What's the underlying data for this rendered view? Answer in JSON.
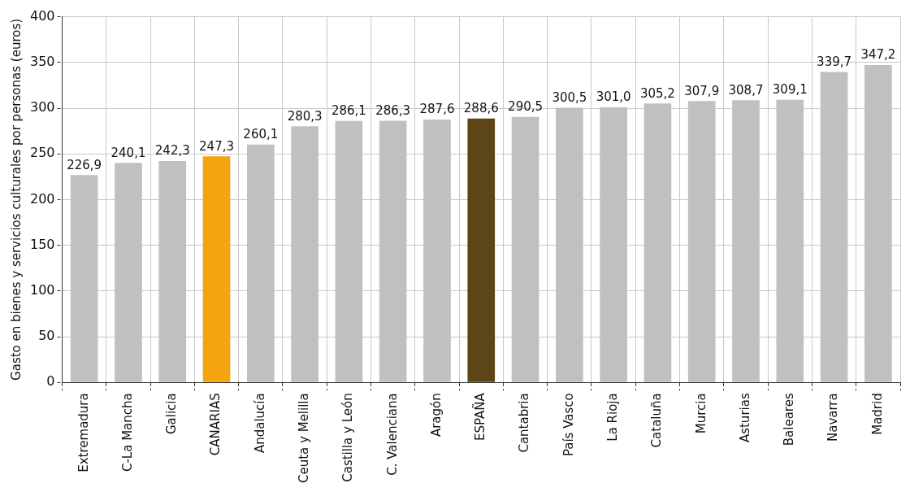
{
  "chart_data": {
    "type": "bar",
    "ylabel": "Gasto en bienes y servicios culturales por personas (euros)",
    "categories": [
      "Extremadura",
      "C-La Mancha",
      "Galicia",
      "CANARIAS",
      "Andalucía",
      "Ceuta y Melilla",
      "Castilla y León",
      "C. Valenciana",
      "Aragón",
      "ESPAÑA",
      "Cantabria",
      "País Vasco",
      "La Rioja",
      "Cataluña",
      "Murcia",
      "Asturias",
      "Baleares",
      "Navarra",
      "Madrid"
    ],
    "values": [
      226.9,
      240.1,
      242.3,
      247.3,
      260.1,
      280.3,
      286.1,
      286.3,
      287.6,
      288.6,
      290.5,
      300.5,
      301.0,
      305.2,
      307.9,
      308.7,
      309.1,
      339.7,
      347.2
    ],
    "value_labels": [
      "226,9",
      "240,1",
      "242,3",
      "247,3",
      "260,1",
      "280,3",
      "286,1",
      "286,3",
      "287,6",
      "288,6",
      "290,5",
      "300,5",
      "301,0",
      "305,2",
      "307,9",
      "308,7",
      "309,1",
      "339,7",
      "347,2"
    ],
    "colors": [
      "#c0c0c0",
      "#c0c0c0",
      "#c0c0c0",
      "#f5a30f",
      "#c0c0c0",
      "#c0c0c0",
      "#c0c0c0",
      "#c0c0c0",
      "#c0c0c0",
      "#5c4516",
      "#c0c0c0",
      "#c0c0c0",
      "#c0c0c0",
      "#c0c0c0",
      "#c0c0c0",
      "#c0c0c0",
      "#c0c0c0",
      "#c0c0c0",
      "#c0c0c0"
    ],
    "ylim": [
      0,
      400
    ],
    "yticks": [
      0,
      50,
      100,
      150,
      200,
      250,
      300,
      350,
      400
    ],
    "grid": true,
    "legend": false
  }
}
